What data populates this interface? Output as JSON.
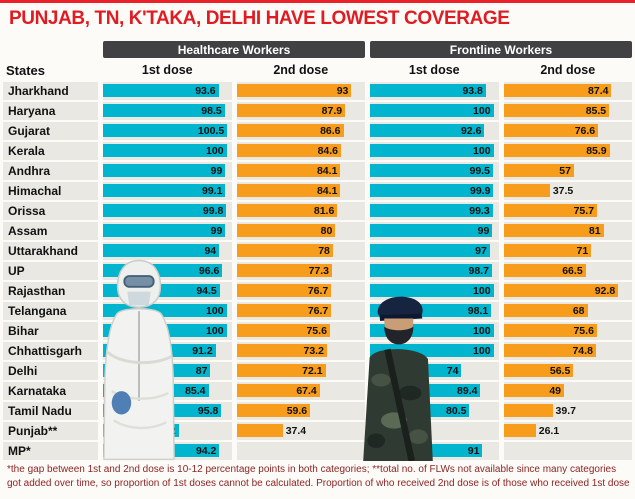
{
  "title": "PUNJAB, TN, K'TAKA, DELHI HAVE LOWEST COVERAGE",
  "header": {
    "groups": [
      "Healthcare Workers",
      "Frontline Workers"
    ],
    "states_label": "States",
    "dose1_label": "1st dose",
    "dose2_label": "2nd dose"
  },
  "footnote": "*the gap between 1st and 2nd dose is 10-12 percentage points in both categories; **total no. of FLWs not available since many categories got added over time, so proportion of 1st doses cannot be calculated. Proportion of who received 2nd dose is of those who received 1st dose",
  "colors": {
    "dose1": "#00b5cd",
    "dose2": "#f89c1c",
    "header_bg": "#414042",
    "title_red": "#e01b22"
  },
  "chart_data": {
    "type": "bar",
    "orientation": "horizontal",
    "title": "PUNJAB, TN, K'TAKA, DELHI HAVE LOWEST COVERAGE",
    "xlim": [
      0,
      104
    ],
    "categories": [
      "Jharkhand",
      "Haryana",
      "Gujarat",
      "Kerala",
      "Andhra",
      "Himachal",
      "Orissa",
      "Assam",
      "Uttarakhand",
      "UP",
      "Rajasthan",
      "Telangana",
      "Bihar",
      "Chhattisgarh",
      "Delhi",
      "Karnataka",
      "Tamil Nadu",
      "Punjab**",
      "MP*"
    ],
    "series": [
      {
        "name": "Healthcare Workers 1st dose",
        "key": "hcw-dose1",
        "dose": 1,
        "values": [
          93.6,
          98.5,
          100.5,
          100,
          99,
          99.1,
          99.8,
          99,
          94,
          96.6,
          94.5,
          100,
          100,
          91.2,
          87,
          85.4,
          95.8,
          61.2,
          94.2
        ]
      },
      {
        "name": "Healthcare Workers 2nd dose",
        "key": "hcw-dose2",
        "dose": 2,
        "values": [
          93,
          87.9,
          86.6,
          84.6,
          84.1,
          84.1,
          81.6,
          80,
          78,
          77.3,
          76.7,
          76.7,
          75.6,
          73.2,
          72.1,
          67.4,
          59.6,
          37.4,
          null
        ]
      },
      {
        "name": "Frontline Workers 1st dose",
        "key": "flw-dose1",
        "dose": 1,
        "values": [
          93.8,
          100,
          92.6,
          100,
          99.5,
          99.9,
          99.3,
          99,
          97,
          98.7,
          100,
          98.1,
          100,
          100,
          74,
          89.4,
          80.5,
          null,
          91
        ]
      },
      {
        "name": "Frontline Workers 2nd dose",
        "key": "flw-dose2",
        "dose": 2,
        "values": [
          87.4,
          85.5,
          76.6,
          85.9,
          57,
          37.5,
          75.7,
          81,
          71,
          66.5,
          92.8,
          68,
          75.6,
          74.8,
          56.5,
          49,
          39.7,
          26.1,
          null
        ]
      }
    ]
  }
}
